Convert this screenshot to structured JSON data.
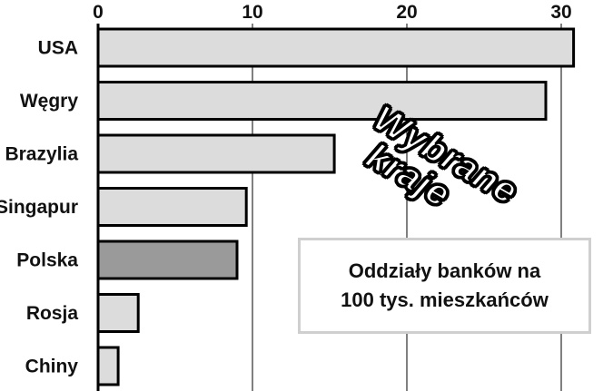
{
  "title": {
    "line1": "Oddziały banków na",
    "line2": "100 tys. mieszkańców"
  },
  "stamp": {
    "line1": "Wybrane",
    "line2": "kraje"
  },
  "colors": {
    "default_bar": "#dcdcdc",
    "highlight_bar": "#9a9a9a",
    "bar_stroke": "#000000",
    "grid": "#000000"
  },
  "chart_data": {
    "type": "bar",
    "orientation": "horizontal",
    "categories": [
      "USA",
      "Węgry",
      "Brazylia",
      "Singapur",
      "Polska",
      "Rosja",
      "Chiny"
    ],
    "values": [
      30.8,
      29,
      15.3,
      9.6,
      9,
      2.6,
      1.3
    ],
    "highlight": "Polska",
    "xlim": [
      0,
      33
    ],
    "xticks": [
      0,
      10,
      20,
      30
    ],
    "xtick_labels": [
      "0",
      "10",
      "20",
      "30"
    ],
    "grid": true,
    "axis_position": "top",
    "xlabel": "",
    "ylabel": ""
  }
}
